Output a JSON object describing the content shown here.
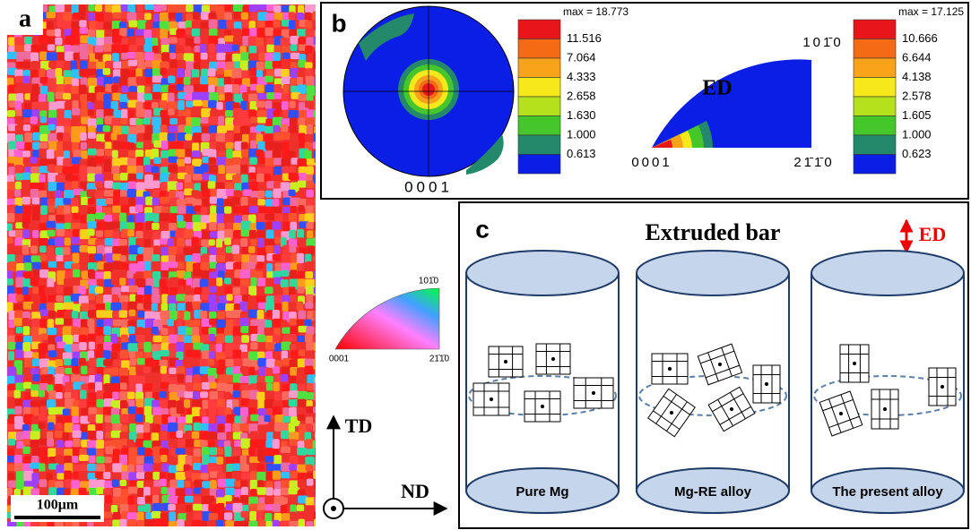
{
  "panels": {
    "a": {
      "label": "a",
      "scale_bar": "100μm"
    },
    "b": {
      "label": "b",
      "pole_figure": {
        "label": "0001"
      },
      "legend_1": {
        "max": "max = 18.773",
        "levels": [
          "11.516",
          "7.064",
          "4.333",
          "2.658",
          "1.630",
          "1.000",
          "0.613"
        ]
      },
      "ipf": {
        "direction": "ED",
        "corners": [
          "0001",
          "21̄1̄0",
          "101̄0"
        ]
      },
      "legend_2": {
        "max": "max = 17.125",
        "levels": [
          "10.666",
          "6.644",
          "4.138",
          "2.578",
          "1.605",
          "1.000",
          "0.623"
        ]
      }
    },
    "key": {
      "corners": [
        "0001",
        "21̄1̄0",
        "101̄0"
      ]
    },
    "axes": {
      "vertical": "TD",
      "horizontal": "ND"
    },
    "c": {
      "label": "c",
      "title": "Extruded bar",
      "direction": "ED",
      "cylinders": [
        "Pure Mg",
        "Mg-RE alloy",
        "The present alloy"
      ]
    }
  }
}
